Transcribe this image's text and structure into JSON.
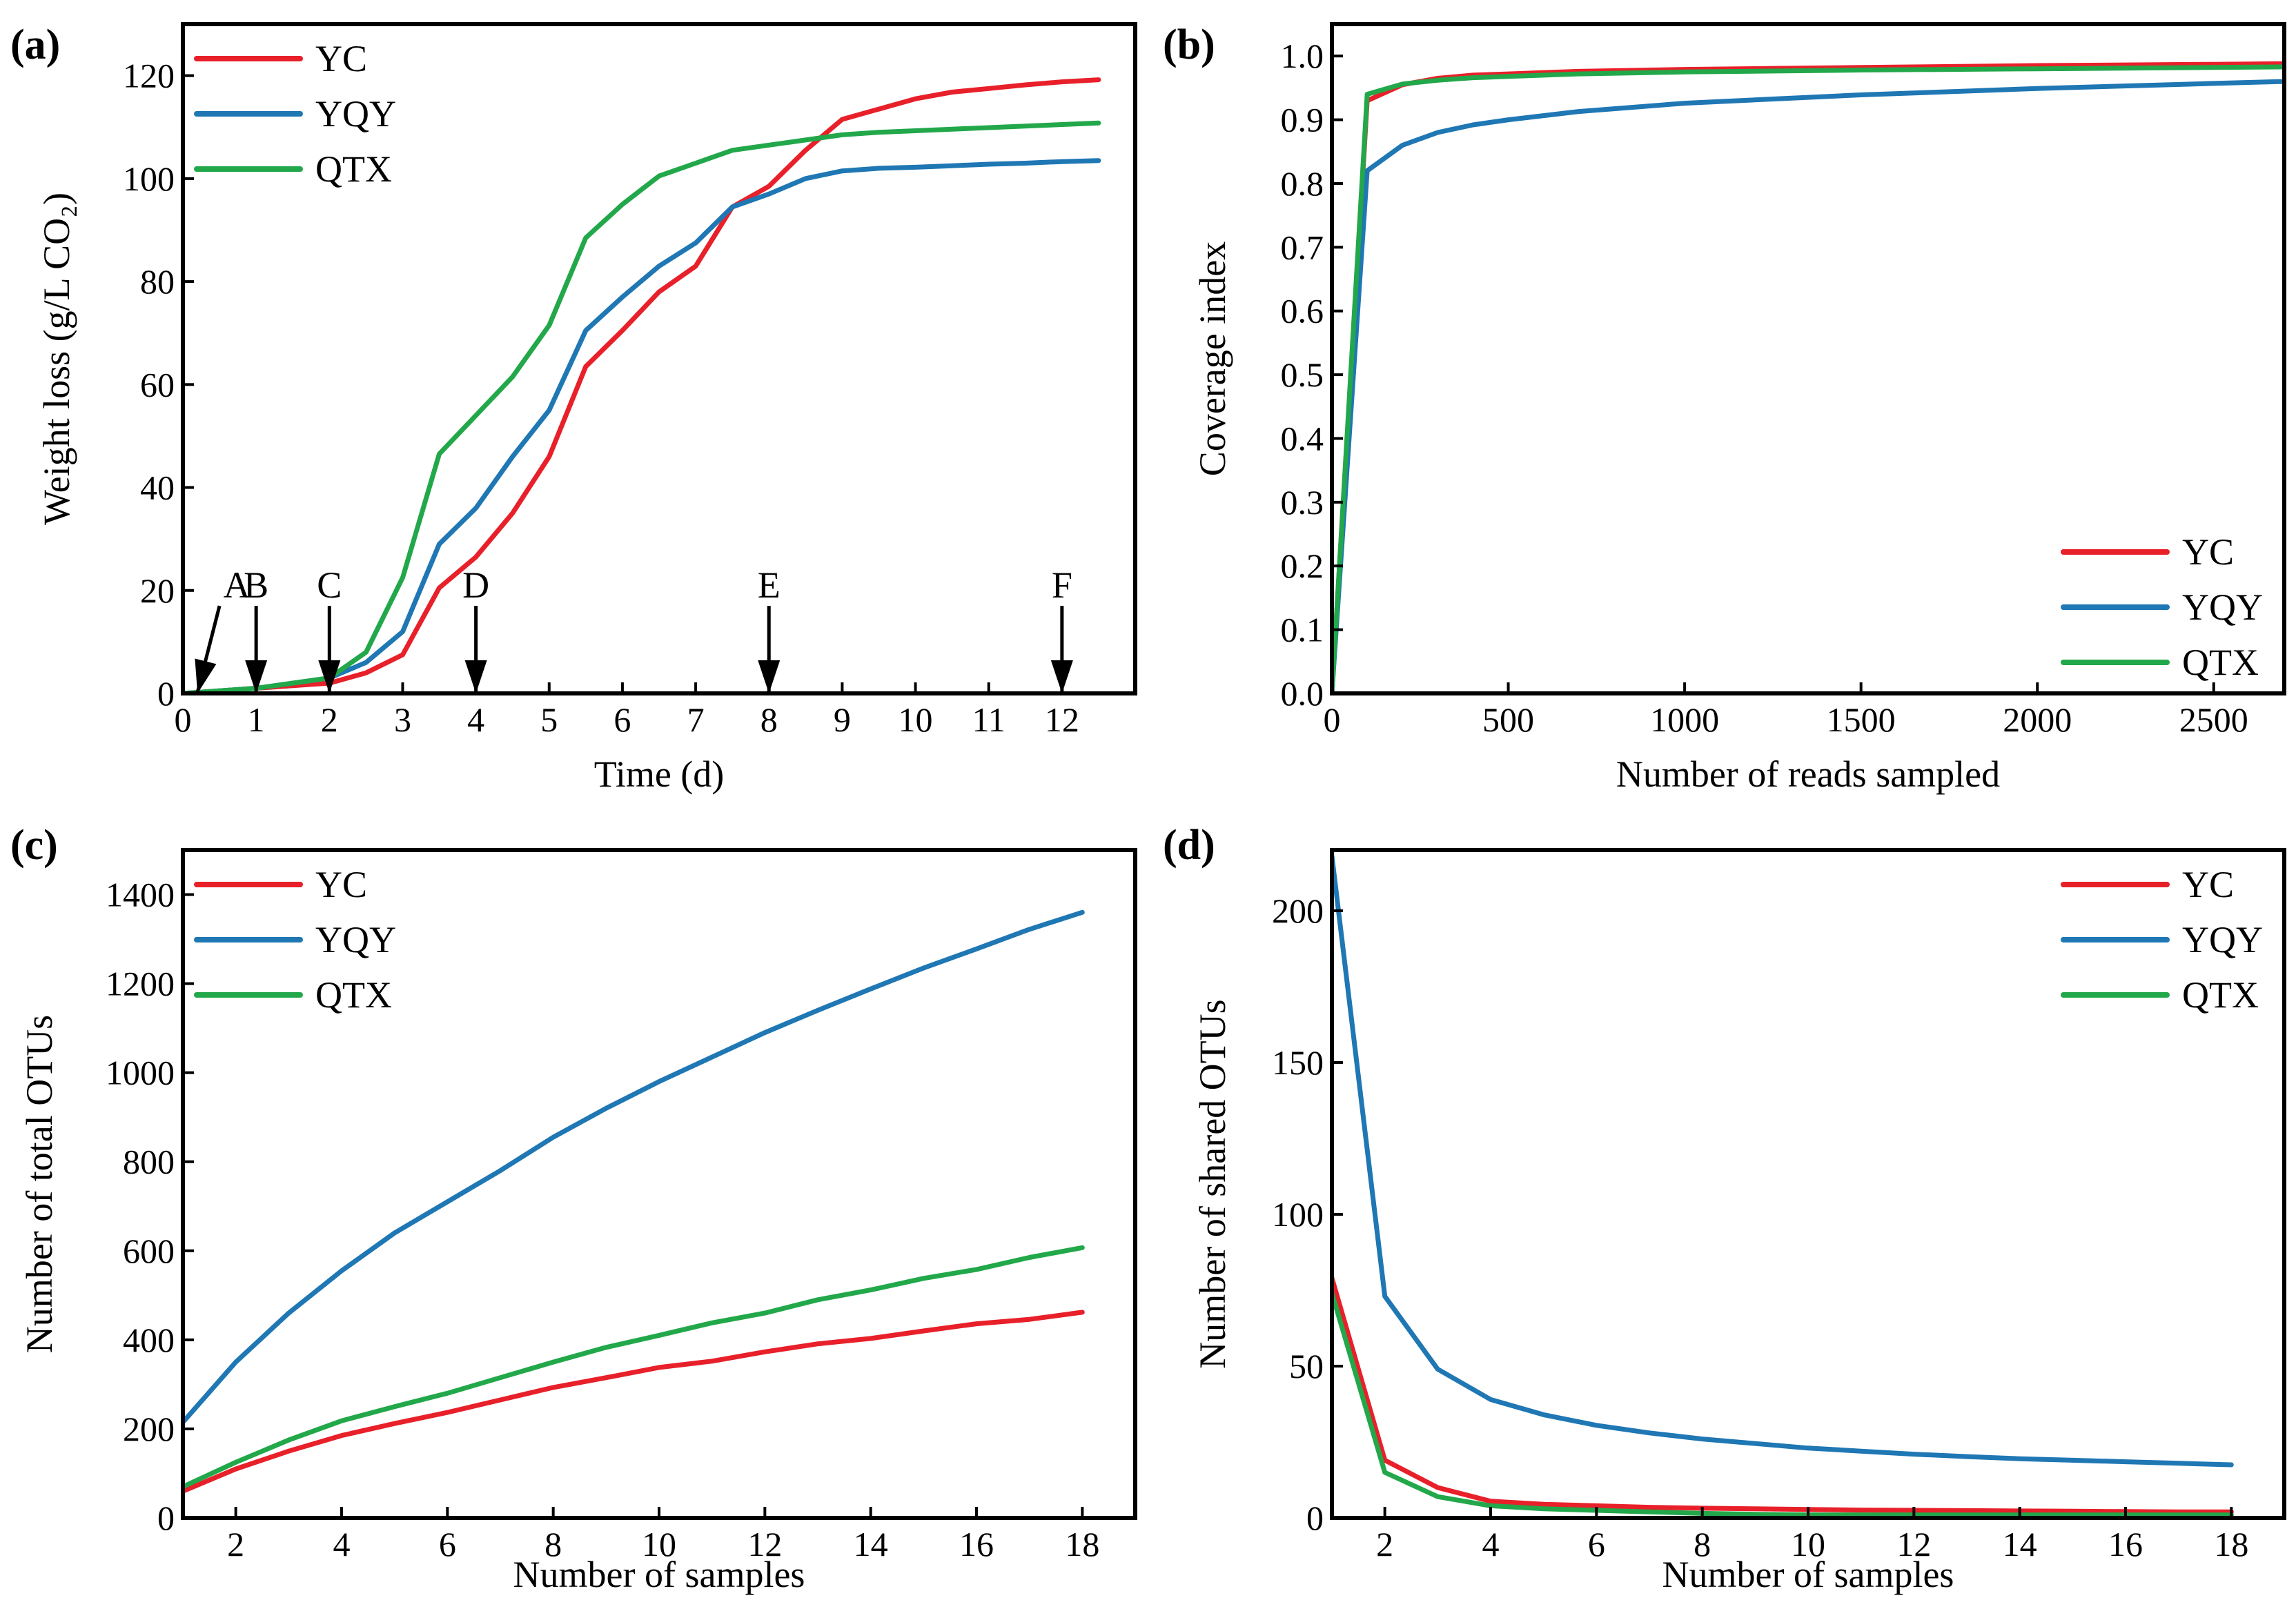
{
  "colors": {
    "YC": "#e8202a",
    "YQY": "#1f77b4",
    "QTX": "#22a84a"
  },
  "chart_data": [
    {
      "id": "a",
      "type": "line",
      "panel_label": "(a)",
      "xlabel": "Time (d)",
      "ylabel": "Weight loss (g/L CO₂)",
      "xlim": [
        0,
        13
      ],
      "ylim": [
        0,
        130
      ],
      "xticks": [
        0,
        1,
        2,
        3,
        4,
        5,
        6,
        7,
        8,
        9,
        10,
        11,
        12
      ],
      "yticks": [
        0,
        20,
        40,
        60,
        80,
        100,
        120
      ],
      "legend_position": "top-left",
      "series": [
        {
          "name": "YC",
          "color": "#e8202a",
          "x": [
            0,
            0.5,
            1,
            1.5,
            2,
            2.5,
            3,
            3.5,
            4,
            4.5,
            5,
            5.5,
            6,
            6.5,
            7,
            7.5,
            8,
            8.5,
            9,
            9.5,
            10,
            10.5,
            11,
            11.5,
            12,
            12.5
          ],
          "y": [
            0,
            0.5,
            1,
            1.5,
            2,
            4,
            7.5,
            20.5,
            26.5,
            35,
            46,
            63.5,
            70.5,
            78,
            83,
            94.5,
            98.5,
            105.5,
            111.5,
            113.5,
            115.5,
            116.8,
            117.5,
            118.2,
            118.8,
            119.2
          ]
        },
        {
          "name": "YQY",
          "color": "#1f77b4",
          "x": [
            0,
            0.5,
            1,
            1.5,
            2,
            2.5,
            3,
            3.5,
            4,
            4.5,
            5,
            5.5,
            6,
            6.5,
            7,
            7.5,
            8,
            8.5,
            9,
            9.5,
            10,
            10.5,
            11,
            11.5,
            12,
            12.5
          ],
          "y": [
            0,
            0.5,
            1,
            2,
            3,
            6,
            12,
            29,
            36,
            46,
            55,
            70.5,
            77,
            83,
            87.5,
            94.5,
            97,
            100,
            101.5,
            102,
            102.2,
            102.5,
            102.8,
            103,
            103.3,
            103.5
          ]
        },
        {
          "name": "QTX",
          "color": "#22a84a",
          "x": [
            0,
            0.5,
            1,
            1.5,
            2,
            2.5,
            3,
            3.5,
            4,
            4.5,
            5,
            5.5,
            6,
            6.5,
            7,
            7.5,
            8,
            8.5,
            9,
            9.5,
            10,
            10.5,
            11,
            11.5,
            12,
            12.5
          ],
          "y": [
            0,
            0.5,
            1,
            2,
            3,
            8,
            22.5,
            46.5,
            54,
            61.5,
            71.5,
            88.5,
            95,
            100.5,
            103,
            105.5,
            106.5,
            107.5,
            108.5,
            109,
            109.3,
            109.6,
            109.9,
            110.2,
            110.5,
            110.8
          ]
        }
      ],
      "annotations": [
        {
          "label": "A",
          "x": 0.2,
          "arrow_from": [
            0.5,
            17
          ]
        },
        {
          "label": "B",
          "x": 1,
          "arrow_from": [
            1,
            17
          ]
        },
        {
          "label": "C",
          "x": 2,
          "arrow_from": [
            2,
            17
          ]
        },
        {
          "label": "D",
          "x": 4,
          "arrow_from": [
            4,
            17
          ]
        },
        {
          "label": "E",
          "x": 8,
          "arrow_from": [
            8,
            17
          ]
        },
        {
          "label": "F",
          "x": 12,
          "arrow_from": [
            12,
            17
          ]
        }
      ]
    },
    {
      "id": "b",
      "type": "line",
      "panel_label": "(b)",
      "xlabel": "Number of reads sampled",
      "ylabel": "Coverage index",
      "xlim": [
        0,
        2700
      ],
      "ylim": [
        0,
        1.05
      ],
      "xticks": [
        0,
        500,
        1000,
        1500,
        2000,
        2500
      ],
      "yticks": [
        0.0,
        0.1,
        0.2,
        0.3,
        0.4,
        0.5,
        0.6,
        0.7,
        0.8,
        0.9,
        1.0
      ],
      "ytick_labels": [
        "0.0",
        "0.1",
        "0.2",
        "0.3",
        "0.4",
        "0.5",
        "0.6",
        "0.7",
        "0.8",
        "0.9",
        "1.0"
      ],
      "legend_position": "bottom-right",
      "series": [
        {
          "name": "YC",
          "color": "#e8202a",
          "x": [
            0,
            100,
            200,
            300,
            400,
            500,
            700,
            1000,
            1500,
            2000,
            2500,
            2700
          ],
          "y": [
            0,
            0.93,
            0.955,
            0.965,
            0.97,
            0.972,
            0.976,
            0.979,
            0.982,
            0.985,
            0.987,
            0.988
          ]
        },
        {
          "name": "YQY",
          "color": "#1f77b4",
          "x": [
            0,
            100,
            200,
            300,
            400,
            500,
            700,
            1000,
            1500,
            2000,
            2500,
            2700
          ],
          "y": [
            0,
            0.82,
            0.86,
            0.88,
            0.892,
            0.9,
            0.913,
            0.926,
            0.939,
            0.949,
            0.957,
            0.96
          ]
        },
        {
          "name": "QTX",
          "color": "#22a84a",
          "x": [
            0,
            100,
            200,
            300,
            400,
            500,
            700,
            1000,
            1500,
            2000,
            2500,
            2700
          ],
          "y": [
            0,
            0.94,
            0.956,
            0.962,
            0.966,
            0.968,
            0.972,
            0.975,
            0.978,
            0.98,
            0.982,
            0.983
          ]
        }
      ]
    },
    {
      "id": "c",
      "type": "line",
      "panel_label": "(c)",
      "xlabel": "Number of samples",
      "ylabel": "Number of total OTUs",
      "xlim": [
        1,
        19
      ],
      "ylim": [
        0,
        1500
      ],
      "xticks": [
        2,
        4,
        6,
        8,
        10,
        12,
        14,
        16,
        18
      ],
      "yticks": [
        0,
        200,
        400,
        600,
        800,
        1000,
        1200,
        1400
      ],
      "legend_position": "top-left",
      "series": [
        {
          "name": "YC",
          "color": "#e8202a",
          "x": [
            1,
            2,
            3,
            4,
            5,
            6,
            7,
            8,
            9,
            10,
            11,
            12,
            13,
            14,
            15,
            16,
            17,
            18
          ],
          "y": [
            60,
            110,
            150,
            185,
            212,
            237,
            265,
            293,
            315,
            338,
            352,
            373,
            391,
            403,
            420,
            436,
            446,
            462
          ]
        },
        {
          "name": "YQY",
          "color": "#1f77b4",
          "x": [
            1,
            2,
            3,
            4,
            5,
            6,
            7,
            8,
            9,
            10,
            11,
            12,
            13,
            14,
            15,
            16,
            17,
            18
          ],
          "y": [
            215,
            350,
            460,
            555,
            640,
            710,
            780,
            855,
            920,
            980,
            1035,
            1090,
            1140,
            1188,
            1235,
            1278,
            1322,
            1360
          ]
        },
        {
          "name": "QTX",
          "color": "#22a84a",
          "x": [
            1,
            2,
            3,
            4,
            5,
            6,
            7,
            8,
            9,
            10,
            11,
            12,
            13,
            14,
            15,
            16,
            17,
            18
          ],
          "y": [
            70,
            125,
            175,
            218,
            250,
            280,
            315,
            350,
            383,
            410,
            438,
            460,
            490,
            512,
            538,
            558,
            585,
            607
          ]
        }
      ]
    },
    {
      "id": "d",
      "type": "line",
      "panel_label": "(d)",
      "xlabel": "Number of samples",
      "ylabel": "Number of shared OTUs",
      "xlim": [
        1,
        19
      ],
      "ylim": [
        0,
        220
      ],
      "xticks": [
        2,
        4,
        6,
        8,
        10,
        12,
        14,
        16,
        18
      ],
      "yticks": [
        0,
        50,
        100,
        150,
        200
      ],
      "legend_position": "top-right",
      "series": [
        {
          "name": "YC",
          "color": "#e8202a",
          "x": [
            1,
            2,
            3,
            4,
            5,
            6,
            7,
            8,
            9,
            10,
            11,
            12,
            13,
            14,
            15,
            16,
            17,
            18
          ],
          "y": [
            79,
            19,
            10,
            5.5,
            4.5,
            4,
            3.5,
            3.2,
            3,
            2.8,
            2.6,
            2.5,
            2.4,
            2.3,
            2.2,
            2.1,
            2,
            2
          ]
        },
        {
          "name": "YQY",
          "color": "#1f77b4",
          "x": [
            1,
            2,
            3,
            4,
            5,
            6,
            7,
            8,
            9,
            10,
            11,
            12,
            13,
            14,
            15,
            16,
            17,
            18
          ],
          "y": [
            218,
            73,
            49,
            39,
            34,
            30.5,
            28,
            26,
            24.5,
            23,
            22,
            21,
            20.2,
            19.5,
            19,
            18.5,
            18,
            17.5
          ]
        },
        {
          "name": "QTX",
          "color": "#22a84a",
          "x": [
            1,
            2,
            3,
            4,
            5,
            6,
            7,
            8,
            9,
            10,
            11,
            12,
            13,
            14,
            15,
            16,
            17,
            18
          ],
          "y": [
            74,
            15,
            7,
            4,
            3,
            2.5,
            2,
            1.5,
            1.2,
            1,
            1,
            1,
            1,
            1,
            1,
            1,
            1,
            1
          ]
        }
      ]
    }
  ]
}
